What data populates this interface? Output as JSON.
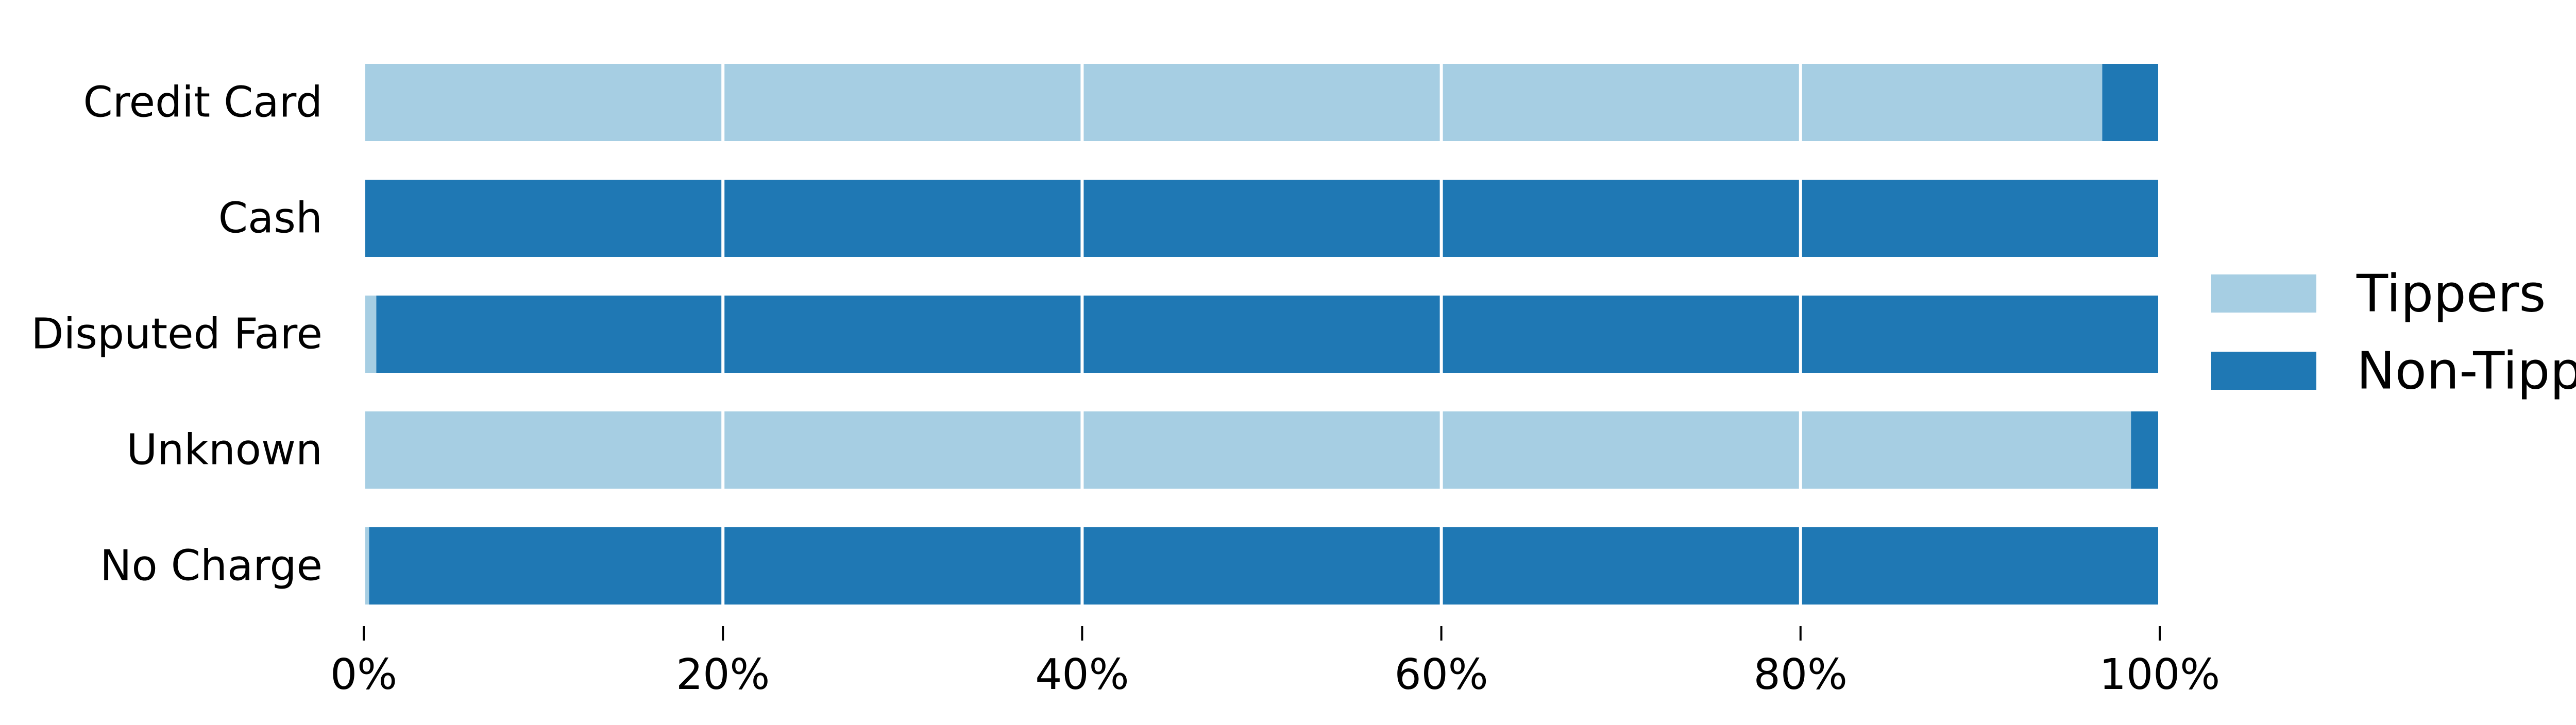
{
  "chart_data": {
    "type": "bar",
    "orientation": "horizontal",
    "stacked": true,
    "categories": [
      "Credit Card",
      "Cash",
      "Disputed Fare",
      "Unknown",
      "No Charge"
    ],
    "series": [
      {
        "name": "Tippers",
        "color": "#a6cee3",
        "values": [
          0.968,
          0.0,
          0.007,
          0.984,
          0.003
        ]
      },
      {
        "name": "Non-Tippers",
        "color": "#1f78b4",
        "values": [
          0.032,
          1.0,
          0.993,
          0.016,
          0.997
        ]
      }
    ],
    "xlim": [
      0,
      1
    ],
    "xticks": [
      0,
      0.2,
      0.4,
      0.6,
      0.8,
      1.0
    ],
    "xtick_labels": [
      "0%",
      "20%",
      "40%",
      "60%",
      "80%",
      "100%"
    ],
    "title": "",
    "xlabel": "",
    "ylabel": "",
    "grid": "vertical lines at x ticks, white, drawn over bars",
    "legend_position": "right"
  }
}
